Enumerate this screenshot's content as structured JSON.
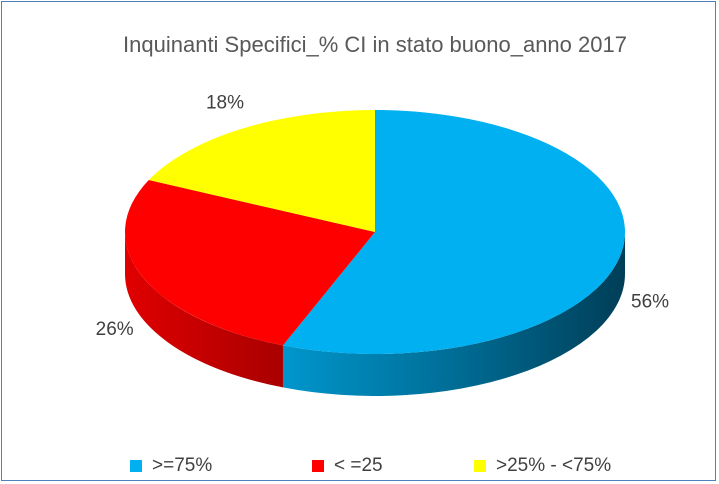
{
  "chart_data": {
    "type": "pie",
    "title": "Inquinanti Specifici_% CI in stato buono_anno 2017",
    "categories": [
      ">=75%",
      "< =25",
      ">25% - <75%"
    ],
    "values": [
      56,
      26,
      18
    ],
    "value_labels": [
      "56%",
      "26%",
      "18%"
    ],
    "colors": [
      "#00b0f0",
      "#ff0000",
      "#ffff00"
    ],
    "legend": "bottom"
  }
}
